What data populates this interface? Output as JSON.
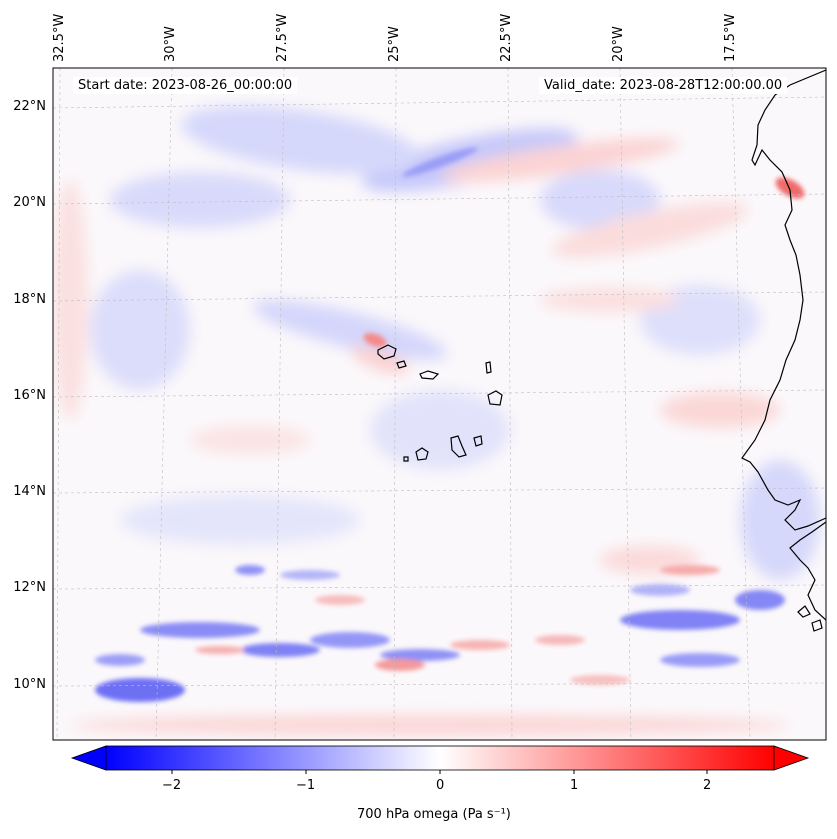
{
  "header": {
    "start_date": "Start date: 2023-08-26_00:00:00",
    "valid_date": "Valid_date: 2023-08-28T12:00:00.00"
  },
  "map": {
    "lon_labels": [
      "32.5°W",
      "30°W",
      "27.5°W",
      "25°W",
      "22.5°W",
      "20°W",
      "17.5°W"
    ],
    "lat_labels": [
      "22°N",
      "20°N",
      "18°N",
      "16°N",
      "14°N",
      "12°N",
      "10°N"
    ],
    "field": "700 hPa omega",
    "diverging_colormap": [
      "#0000ff",
      "#ffffff",
      "#ff0000"
    ]
  },
  "colorbar": {
    "label": "700 hPa omega (Pa s⁻¹)",
    "ticks": [
      "−2",
      "−1",
      "0",
      "1",
      "2"
    ],
    "range": [
      -2.75,
      2.75
    ]
  }
}
